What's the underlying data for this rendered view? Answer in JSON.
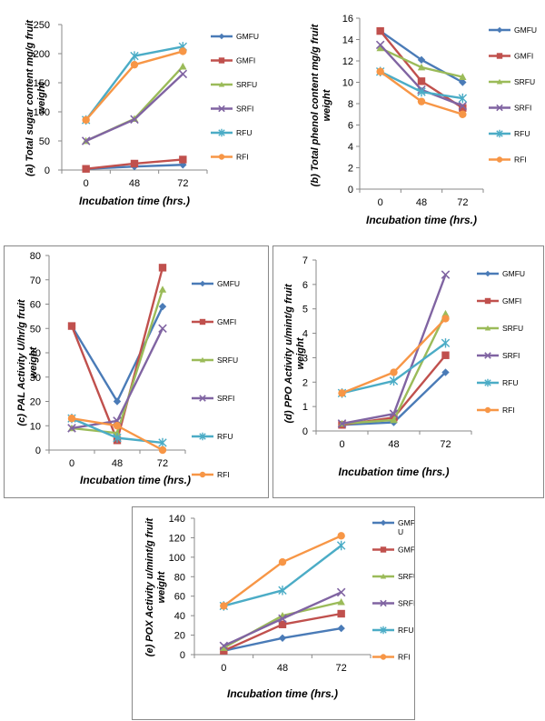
{
  "series_style": [
    {
      "name": "GMFU",
      "color": "#4a7bb7",
      "marker": "diamond"
    },
    {
      "name": "GMFI",
      "color": "#c0504d",
      "marker": "square"
    },
    {
      "name": "SRFU",
      "color": "#9bbb59",
      "marker": "triangle"
    },
    {
      "name": "SRFI",
      "color": "#8064a2",
      "marker": "x"
    },
    {
      "name": "RFU",
      "color": "#4bacc6",
      "marker": "star"
    },
    {
      "name": "RFI",
      "color": "#f79646",
      "marker": "circle"
    }
  ],
  "chart_data": [
    {
      "type": "line",
      "ylabel": "(a) Total sugar content mg/g fruit weight",
      "xlabel": "Incubation time (hrs.)",
      "categories": [
        "0",
        "48",
        "72"
      ],
      "ylim": [
        0,
        250
      ],
      "yticks": [
        0,
        50,
        100,
        150,
        200,
        250
      ],
      "legend": [
        "GMFU",
        "GMFI",
        "SRFU",
        "SRFI",
        "RFU",
        "RFI"
      ],
      "series": [
        {
          "name": "GMFU",
          "values": [
            2,
            6,
            9
          ]
        },
        {
          "name": "GMFI",
          "values": [
            2,
            11,
            18
          ]
        },
        {
          "name": "SRFU",
          "values": [
            50,
            88,
            178
          ]
        },
        {
          "name": "SRFI",
          "values": [
            50,
            87,
            165
          ]
        },
        {
          "name": "RFU",
          "values": [
            86,
            196,
            212
          ]
        },
        {
          "name": "RFI",
          "values": [
            86,
            181,
            204
          ]
        }
      ]
    },
    {
      "type": "line",
      "ylabel": "(b) Total phenol content mg/g fruit weight",
      "xlabel": "Incubation time (hrs.)",
      "categories": [
        "0",
        "48",
        "72"
      ],
      "ylim": [
        0,
        16
      ],
      "yticks": [
        0,
        2,
        4,
        6,
        8,
        10,
        12,
        14,
        16
      ],
      "legend": [
        "GMFU",
        "GMFI",
        "SRFU",
        "SRFI",
        "RFU",
        "RFI"
      ],
      "series": [
        {
          "name": "GMFU",
          "values": [
            14.8,
            12.1,
            10.0
          ]
        },
        {
          "name": "GMFI",
          "values": [
            14.8,
            10.1,
            7.6
          ]
        },
        {
          "name": "SRFU",
          "values": [
            13.2,
            11.4,
            10.5
          ]
        },
        {
          "name": "SRFI",
          "values": [
            13.5,
            9.3,
            7.8
          ]
        },
        {
          "name": "RFU",
          "values": [
            11.0,
            9.1,
            8.5
          ]
        },
        {
          "name": "RFI",
          "values": [
            11.0,
            8.2,
            7.0
          ]
        }
      ]
    },
    {
      "type": "line",
      "ylabel": "(c) PAL Activity U/hr/g fruit weight",
      "xlabel": "Incubation time (hrs.)",
      "categories": [
        "0",
        "48",
        "72"
      ],
      "ylim": [
        0,
        80
      ],
      "yticks": [
        0,
        10,
        20,
        30,
        40,
        50,
        60,
        70,
        80
      ],
      "legend": [
        "GMFU",
        "GMFI",
        "SRFU",
        "SRFI",
        "RFU",
        "RFI"
      ],
      "series": [
        {
          "name": "GMFU",
          "values": [
            51,
            20,
            59
          ]
        },
        {
          "name": "GMFI",
          "values": [
            51,
            4,
            75
          ]
        },
        {
          "name": "SRFU",
          "values": [
            9,
            7,
            66
          ]
        },
        {
          "name": "SRFI",
          "values": [
            9,
            12,
            50
          ]
        },
        {
          "name": "RFU",
          "values": [
            13,
            5,
            3
          ]
        },
        {
          "name": "RFI",
          "values": [
            13,
            10,
            0
          ]
        }
      ]
    },
    {
      "type": "line",
      "ylabel": "(d) PPO Activity u/mint/g fruit weight",
      "xlabel": "Incubation time (hrs.)",
      "categories": [
        "0",
        "48",
        "72"
      ],
      "ylim": [
        0,
        7
      ],
      "yticks": [
        0,
        1,
        2,
        3,
        4,
        5,
        6,
        7
      ],
      "legend": [
        "GMFU",
        "GMFI",
        "SRFU",
        "SRFI",
        "RFU",
        "RFI"
      ],
      "series": [
        {
          "name": "GMFU",
          "values": [
            0.25,
            0.35,
            2.4
          ]
        },
        {
          "name": "GMFI",
          "values": [
            0.25,
            0.55,
            3.1
          ]
        },
        {
          "name": "SRFU",
          "values": [
            0.3,
            0.45,
            4.8
          ]
        },
        {
          "name": "SRFI",
          "values": [
            0.3,
            0.7,
            6.4
          ]
        },
        {
          "name": "RFU",
          "values": [
            1.55,
            2.05,
            3.6
          ]
        },
        {
          "name": "RFI",
          "values": [
            1.55,
            2.4,
            4.6
          ]
        }
      ]
    },
    {
      "type": "line",
      "ylabel": "(e) POX Activity u/mint/g fruit weight",
      "xlabel": "Incubation time (hrs.)",
      "categories": [
        "0",
        "48",
        "72"
      ],
      "ylim": [
        0,
        140
      ],
      "yticks": [
        0,
        20,
        40,
        60,
        80,
        100,
        120,
        140
      ],
      "legend": [
        "GMF U",
        "GMFI",
        "SRFU",
        "SRFI",
        "RFU",
        "RFI"
      ],
      "series": [
        {
          "name": "GMFU",
          "values": [
            4,
            17,
            27
          ]
        },
        {
          "name": "GMFI",
          "values": [
            4,
            31,
            42
          ]
        },
        {
          "name": "SRFU",
          "values": [
            7,
            40,
            54
          ]
        },
        {
          "name": "SRFI",
          "values": [
            9,
            37,
            64
          ]
        },
        {
          "name": "RFU",
          "values": [
            50,
            66,
            112
          ]
        },
        {
          "name": "RFI",
          "values": [
            50,
            95,
            122
          ]
        }
      ]
    }
  ]
}
